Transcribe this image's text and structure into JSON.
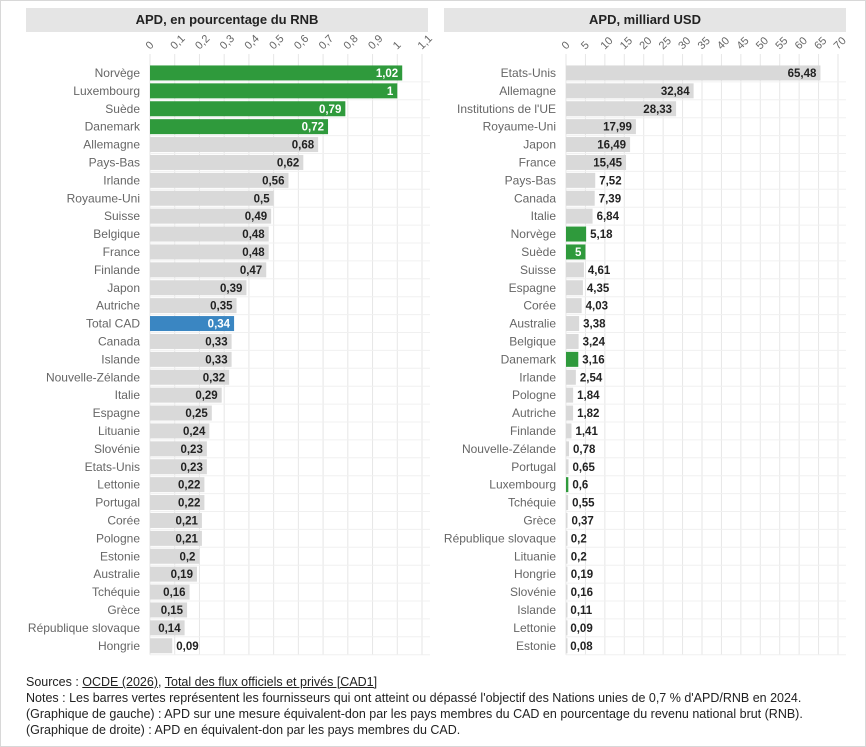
{
  "charts": [
    {
      "id": "left",
      "title": "APD, en pourcentage du RNB"
    },
    {
      "id": "right",
      "title": "APD, milliard USD"
    }
  ],
  "chart_data": [
    {
      "type": "bar",
      "orientation": "horizontal",
      "title": "APD, en pourcentage du RNB",
      "xlim": [
        0,
        1.1
      ],
      "ticks": [
        "0",
        "0,1",
        "0,2",
        "0,3",
        "0,4",
        "0,5",
        "0,6",
        "0,7",
        "0,8",
        "0,9",
        "1",
        "1,1"
      ],
      "grid": true,
      "categories": [
        "Norvège",
        "Luxembourg",
        "Suède",
        "Danemark",
        "Allemagne",
        "Pays-Bas",
        "Irlande",
        "Royaume-Uni",
        "Suisse",
        "Belgique",
        "France",
        "Finlande",
        "Japon",
        "Autriche",
        "Total CAD",
        "Canada",
        "Islande",
        "Nouvelle-Zélande",
        "Italie",
        "Espagne",
        "Lituanie",
        "Slovénie",
        "Etats-Unis",
        "Lettonie",
        "Portugal",
        "Corée",
        "Pologne",
        "Estonie",
        "Australie",
        "Tchéquie",
        "Grèce",
        "République slovaque",
        "Hongrie"
      ],
      "values": [
        1.02,
        1,
        0.79,
        0.72,
        0.68,
        0.62,
        0.56,
        0.5,
        0.49,
        0.48,
        0.48,
        0.47,
        0.39,
        0.35,
        0.34,
        0.33,
        0.33,
        0.32,
        0.29,
        0.25,
        0.24,
        0.23,
        0.23,
        0.22,
        0.22,
        0.21,
        0.21,
        0.2,
        0.19,
        0.16,
        0.15,
        0.14,
        0.09
      ],
      "labels": [
        "1,02",
        "1",
        "0,79",
        "0,72",
        "0,68",
        "0,62",
        "0,56",
        "0,5",
        "0,49",
        "0,48",
        "0,48",
        "0,47",
        "0,39",
        "0,35",
        "0,34",
        "0,33",
        "0,33",
        "0,32",
        "0,29",
        "0,25",
        "0,24",
        "0,23",
        "0,23",
        "0,22",
        "0,22",
        "0,21",
        "0,21",
        "0,2",
        "0,19",
        "0,16",
        "0,15",
        "0,14",
        "0,09"
      ],
      "highlight": {
        "Norvège": "green",
        "Luxembourg": "green",
        "Suède": "green",
        "Danemark": "green",
        "Total CAD": "blue"
      }
    },
    {
      "type": "bar",
      "orientation": "horizontal",
      "title": "APD, milliard USD",
      "xlim": [
        0,
        70
      ],
      "ticks": [
        "0",
        "5",
        "10",
        "15",
        "20",
        "25",
        "30",
        "35",
        "40",
        "45",
        "50",
        "55",
        "60",
        "65",
        "70"
      ],
      "grid": true,
      "categories": [
        "Etats-Unis",
        "Allemagne",
        "Institutions de l'UE",
        "Royaume-Uni",
        "Japon",
        "France",
        "Pays-Bas",
        "Canada",
        "Italie",
        "Norvège",
        "Suède",
        "Suisse",
        "Espagne",
        "Corée",
        "Australie",
        "Belgique",
        "Danemark",
        "Irlande",
        "Pologne",
        "Autriche",
        "Finlande",
        "Nouvelle-Zélande",
        "Portugal",
        "Luxembourg",
        "Tchéquie",
        "Grèce",
        "République slovaque",
        "Lituanie",
        "Hongrie",
        "Slovénie",
        "Islande",
        "Lettonie",
        "Estonie"
      ],
      "values": [
        65.48,
        32.84,
        28.33,
        17.99,
        16.49,
        15.45,
        7.52,
        7.39,
        6.84,
        5.18,
        5,
        4.61,
        4.35,
        4.03,
        3.38,
        3.24,
        3.16,
        2.54,
        1.84,
        1.82,
        1.41,
        0.78,
        0.65,
        0.6,
        0.55,
        0.37,
        0.2,
        0.2,
        0.19,
        0.16,
        0.11,
        0.09,
        0.08
      ],
      "labels": [
        "65,48",
        "32,84",
        "28,33",
        "17,99",
        "16,49",
        "15,45",
        "7,52",
        "7,39",
        "6,84",
        "5,18",
        "5",
        "4,61",
        "4,35",
        "4,03",
        "3,38",
        "3,24",
        "3,16",
        "2,54",
        "1,84",
        "1,82",
        "1,41",
        "0,78",
        "0,65",
        "0,6",
        "0,55",
        "0,37",
        "0,2",
        "0,2",
        "0,19",
        "0,16",
        "0,11",
        "0,09",
        "0,08"
      ],
      "highlight": {
        "Norvège": "green",
        "Suède": "green",
        "Danemark": "green",
        "Luxembourg": "green"
      }
    }
  ],
  "colors": {
    "bar_default": "#d9d9d9",
    "bar_green": "#2f9a3c",
    "bar_blue": "#3a86c2",
    "grid": "#e6e6e6",
    "label_dark": "#222222",
    "label_light": "#ffffff",
    "axis_text": "#666666"
  },
  "footer": {
    "sources_prefix": "Sources : ",
    "source_link_1": "OCDE (2026)",
    "source_sep": ", ",
    "source_link_2": "Total des flux officiels et privés [CAD1]",
    "note_1": "Notes : Les barres vertes représentent les fournisseurs qui ont atteint ou dépassé l'objectif des Nations unies de 0,7 % d'APD/RNB en 2024.",
    "note_2": "(Graphique de gauche) : APD sur une mesure équivalent-don par les pays membres du CAD en pourcentage du revenu national brut (RNB).",
    "note_3": "(Graphique de droite) : APD en équivalent-don par les pays membres du CAD."
  }
}
